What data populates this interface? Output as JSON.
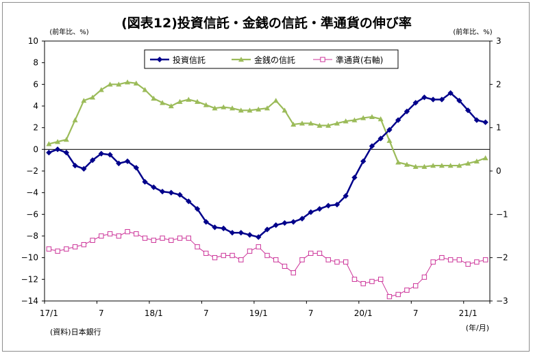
{
  "chart_data": {
    "type": "line",
    "title": "(図表12)投資信託・金銭の信託・準通貨の伸び率",
    "left_unit": "(前年比、%)",
    "right_unit": "(前年比、%)",
    "source": "(資料)日本銀行",
    "x_unit": "(年/月)",
    "x_tick_labels": [
      "17/1",
      "7",
      "18/1",
      "7",
      "19/1",
      "7",
      "20/1",
      "7",
      "21/1"
    ],
    "y_left": {
      "min": -14,
      "max": 10,
      "ticks": [
        "10",
        "8",
        "6",
        "4",
        "2",
        "0",
        "−2",
        "−4",
        "−6",
        "−8",
        "−10",
        "−12",
        "−14"
      ]
    },
    "y_right": {
      "min": -3,
      "max": 3,
      "ticks": [
        "3",
        "2",
        "1",
        "0",
        "−1",
        "−2",
        "−3"
      ]
    },
    "grid": false,
    "legend_position": "top-center",
    "months": [
      "2017-01",
      "2017-02",
      "2017-03",
      "2017-04",
      "2017-05",
      "2017-06",
      "2017-07",
      "2017-08",
      "2017-09",
      "2017-10",
      "2017-11",
      "2017-12",
      "2018-01",
      "2018-02",
      "2018-03",
      "2018-04",
      "2018-05",
      "2018-06",
      "2018-07",
      "2018-08",
      "2018-09",
      "2018-10",
      "2018-11",
      "2018-12",
      "2019-01",
      "2019-02",
      "2019-03",
      "2019-04",
      "2019-05",
      "2019-06",
      "2019-07",
      "2019-08",
      "2019-09",
      "2019-10",
      "2019-11",
      "2019-12",
      "2020-01",
      "2020-02",
      "2020-03",
      "2020-04",
      "2020-05",
      "2020-06",
      "2020-07",
      "2020-08",
      "2020-09",
      "2020-10",
      "2020-11",
      "2020-12",
      "2021-01",
      "2021-02",
      "2021-03"
    ],
    "series": [
      {
        "name": "投資信託",
        "axis": "left",
        "color": "#00008b",
        "marker": "diamond",
        "values": [
          -0.3,
          0.0,
          -0.3,
          -1.5,
          -1.8,
          -1.0,
          -0.4,
          -0.5,
          -1.3,
          -1.1,
          -1.7,
          -3.0,
          -3.5,
          -3.9,
          -4.0,
          -4.2,
          -4.8,
          -5.5,
          -6.7,
          -7.2,
          -7.3,
          -7.7,
          -7.7,
          -7.9,
          -8.1,
          -7.4,
          -7.0,
          -6.8,
          -6.7,
          -6.4,
          -5.8,
          -5.5,
          -5.2,
          -5.1,
          -4.3,
          -2.6,
          -1.1,
          0.3,
          1.0,
          1.8,
          2.7,
          3.5,
          4.3,
          4.8,
          4.6,
          4.6,
          5.2,
          4.5,
          3.6,
          2.7,
          2.5
        ]
      },
      {
        "name": "金銭の信託",
        "axis": "left",
        "color": "#9bbb59",
        "marker": "triangle",
        "values": [
          0.5,
          0.7,
          0.9,
          2.7,
          4.5,
          4.8,
          5.5,
          6.0,
          6.0,
          6.2,
          6.1,
          5.5,
          4.7,
          4.3,
          4.0,
          4.4,
          4.6,
          4.4,
          4.1,
          3.8,
          3.9,
          3.8,
          3.6,
          3.6,
          3.7,
          3.8,
          4.5,
          3.6,
          2.3,
          2.4,
          2.4,
          2.2,
          2.2,
          2.4,
          2.6,
          2.7,
          2.9,
          3.0,
          2.8,
          0.8,
          -1.2,
          -1.4,
          -1.6,
          -1.6,
          -1.5,
          -1.5,
          -1.5,
          -1.5,
          -1.3,
          -1.1,
          -0.8
        ]
      },
      {
        "name": "準通貨(右軸)",
        "axis": "right",
        "color": "#cc3399",
        "marker": "square-open",
        "values": [
          -1.8,
          -1.85,
          -1.8,
          -1.75,
          -1.7,
          -1.6,
          -1.5,
          -1.45,
          -1.5,
          -1.4,
          -1.45,
          -1.55,
          -1.6,
          -1.55,
          -1.6,
          -1.55,
          -1.55,
          -1.75,
          -1.9,
          -2.0,
          -1.95,
          -1.95,
          -2.05,
          -1.85,
          -1.75,
          -1.95,
          -2.05,
          -2.2,
          -2.35,
          -2.05,
          -1.9,
          -1.9,
          -2.05,
          -2.1,
          -2.1,
          -2.5,
          -2.6,
          -2.55,
          -2.5,
          -2.9,
          -2.85,
          -2.75,
          -2.65,
          -2.45,
          -2.1,
          -2.0,
          -2.05,
          -2.05,
          -2.15,
          -2.1,
          -2.05
        ]
      }
    ]
  }
}
